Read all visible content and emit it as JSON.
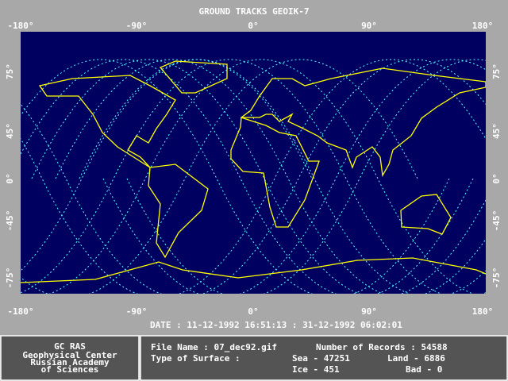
{
  "header": {
    "title": "GROUND TRACKS GEOIK-7"
  },
  "map": {
    "top_lon_labels": [
      "-180°",
      "-90°",
      "0°",
      "90°",
      "180°"
    ],
    "bottom_lon_labels": [
      "-180°",
      "-90°",
      "0°",
      "90°",
      "180°"
    ],
    "left_lat_labels": [
      "75°",
      "45°",
      "0°",
      "-45°",
      "-75°"
    ],
    "right_lat_labels": [
      "75°",
      "45°",
      "0°",
      "-45°",
      "-75°"
    ]
  },
  "date_range": "DATE : 11-12-1992 16:51:13 : 31-12-1992 06:02:01",
  "footer": {
    "org": [
      "GC RAS",
      "Geophysical Center",
      "Russian Academy",
      "of Sciences"
    ],
    "file_name": "File Name : 07_dec92.gif",
    "records": "Number of Records : 54588",
    "surface_label": "Type of Surface :",
    "sea": "Sea - 47251",
    "land": "Land - 6886",
    "ice": "Ice - 451",
    "bad": "Bad - 0"
  }
}
